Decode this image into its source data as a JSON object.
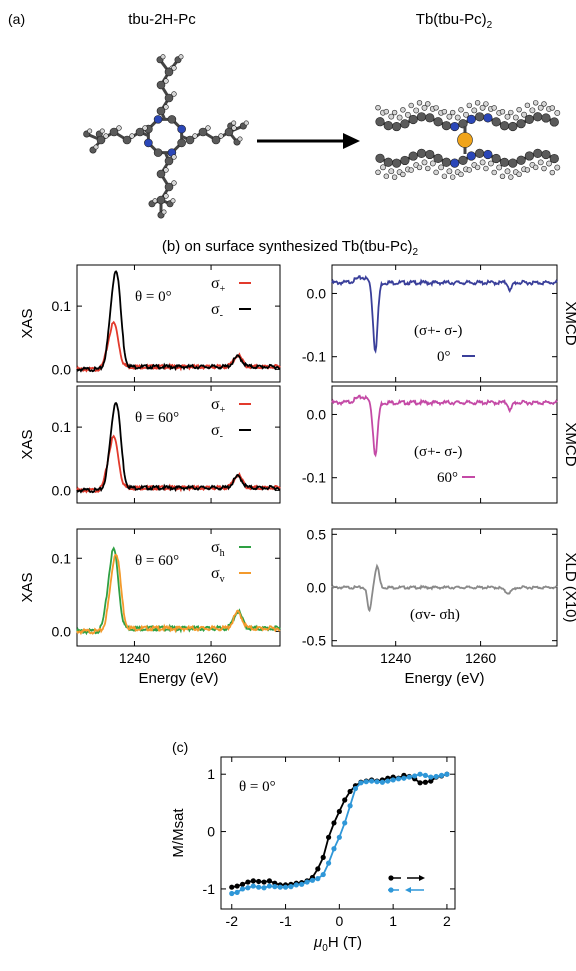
{
  "panel_a": {
    "label": "(a)",
    "left_title": "tbu-2H-Pc",
    "right_title_main": "Tb(tbu-Pc)",
    "right_title_sub": "2"
  },
  "panel_b": {
    "label_main": "(b) on surface synthesized Tb(tbu-Pc)",
    "label_sub": "2"
  },
  "panel_c": {
    "label": "(c)"
  },
  "colors": {
    "sigma_plus": "#e23a2c",
    "sigma_minus": "#000000",
    "xmcd0": "#3a3f9a",
    "xmcd60": "#c44aa6",
    "sigma_h": "#2ea043",
    "sigma_v": "#f39a2c",
    "xld": "#8a8a8a",
    "hyst_up": "#000000",
    "hyst_down": "#2f97d8",
    "atom_c": "#5a5a5a",
    "atom_h": "#d6d6d6",
    "atom_n": "#2b47b8",
    "atom_tb": "#f0a41a"
  },
  "chart_data": [
    {
      "id": "xas-0",
      "type": "line",
      "ylabel": "XAS",
      "xlabel": "",
      "xlim": [
        1225,
        1278
      ],
      "ylim": [
        -0.02,
        0.165
      ],
      "yticks": [
        0.0,
        0.1
      ],
      "ytick_labels": [
        "0.0",
        "0.1"
      ],
      "xticks": [
        1240,
        1260
      ],
      "xtick_labels": [
        "",
        ""
      ],
      "annotation": "θ = 0°",
      "legend_placement": "top-right",
      "series": [
        {
          "name": "σ+",
          "label_main": "σ",
          "label_sub": "+",
          "color": "#e23a2c",
          "peak1": 0.065,
          "peak2": 0.018
        },
        {
          "name": "σ-",
          "label_main": "σ",
          "label_sub": "-",
          "color": "#000000",
          "peak1": 0.14,
          "peak2": 0.016
        }
      ]
    },
    {
      "id": "xmcd-0",
      "type": "line",
      "ylabel": "XMCD",
      "xlabel": "",
      "xlim": [
        1225,
        1278
      ],
      "ylim": [
        -0.14,
        0.045
      ],
      "yticks": [
        0.0,
        -0.1
      ],
      "ytick_labels": [
        "0.0",
        "-0.1"
      ],
      "xticks": [
        1240,
        1260
      ],
      "xtick_labels": [
        "",
        ""
      ],
      "annotation": "(σ+- σ-)",
      "legend_placement": "center-right",
      "series": [
        {
          "name": "0°",
          "color": "#3a3f9a",
          "dip": -0.107,
          "pre": 0.02
        }
      ]
    },
    {
      "id": "xas-60",
      "type": "line",
      "ylabel": "XAS",
      "xlabel": "",
      "xlim": [
        1225,
        1278
      ],
      "ylim": [
        -0.02,
        0.165
      ],
      "yticks": [
        0.0,
        0.1
      ],
      "ytick_labels": [
        "0.0",
        "0.1"
      ],
      "xticks": [
        1240,
        1260
      ],
      "xtick_labels": [
        "",
        ""
      ],
      "annotation": "θ = 60°",
      "legend_placement": "top-right",
      "series": [
        {
          "name": "σ+",
          "label_main": "σ",
          "label_sub": "+",
          "color": "#e23a2c",
          "peak1": 0.075,
          "peak2": 0.02
        },
        {
          "name": "σ-",
          "label_main": "σ",
          "label_sub": "-",
          "color": "#000000",
          "peak1": 0.125,
          "peak2": 0.018
        }
      ]
    },
    {
      "id": "xmcd-60",
      "type": "line",
      "ylabel": "XMCD",
      "xlabel": "",
      "xlim": [
        1225,
        1278
      ],
      "ylim": [
        -0.14,
        0.045
      ],
      "yticks": [
        0.0,
        -0.1
      ],
      "ytick_labels": [
        "0.0",
        "-0.1"
      ],
      "xticks": [
        1240,
        1260
      ],
      "xtick_labels": [
        "",
        ""
      ],
      "annotation": "(σ+- σ-)",
      "legend_placement": "center-right",
      "series": [
        {
          "name": "60°",
          "color": "#c44aa6",
          "dip": -0.082,
          "pre": 0.022
        }
      ]
    },
    {
      "id": "xas-lin",
      "type": "line",
      "ylabel": "XAS",
      "xlabel": "Energy (eV)",
      "xlim": [
        1225,
        1278
      ],
      "ylim": [
        -0.02,
        0.14
      ],
      "yticks": [
        0.0,
        0.1
      ],
      "ytick_labels": [
        "0.0",
        "0.1"
      ],
      "xticks": [
        1240,
        1260
      ],
      "xtick_labels": [
        "1240",
        "1260"
      ],
      "annotation": "θ = 60°",
      "legend_placement": "top-right",
      "series": [
        {
          "name": "σh",
          "label_main": "σ",
          "label_sub": "h",
          "color": "#2ea043",
          "peak1": 0.1,
          "peak2": 0.023
        },
        {
          "name": "σv",
          "label_main": "σ",
          "label_sub": "v",
          "color": "#f39a2c",
          "peak1": 0.095,
          "peak2": 0.022
        }
      ]
    },
    {
      "id": "xld",
      "type": "line",
      "ylabel": "XLD (X10)",
      "xlabel": "Energy (eV)",
      "xlim": [
        1225,
        1278
      ],
      "ylim": [
        -0.55,
        0.55
      ],
      "yticks": [
        0.5,
        0.0,
        -0.5
      ],
      "ytick_labels": [
        "0.5",
        "0.0",
        "-0.5"
      ],
      "xticks": [
        1240,
        1260
      ],
      "xtick_labels": [
        "1240",
        "1260"
      ],
      "annotation": "(σv- σh)",
      "legend_placement": "none",
      "series": [
        {
          "name": "XLD",
          "color": "#8a8a8a",
          "dip": -0.22,
          "bump": 0.2
        }
      ]
    },
    {
      "id": "hysteresis",
      "type": "line",
      "ylabel": "M/Msat",
      "xlabel_main": "μ",
      "xlabel_sub": "0",
      "xlabel_tail": "H (T)",
      "xlim": [
        -2.2,
        2.15
      ],
      "ylim": [
        -1.35,
        1.3
      ],
      "yticks": [
        1,
        0,
        -1
      ],
      "ytick_labels": [
        "1",
        "0",
        "-1"
      ],
      "xticks": [
        -2,
        -1,
        0,
        1,
        2
      ],
      "xtick_labels": [
        "-2",
        "-1",
        "0",
        "1",
        "2"
      ],
      "annotation": "θ = 0°",
      "legend_placement": "bottom-right",
      "series": [
        {
          "name": "up sweep",
          "color": "#000000",
          "marker": "circle",
          "x": [
            -2.0,
            -1.9,
            -1.8,
            -1.7,
            -1.6,
            -1.5,
            -1.4,
            -1.3,
            -1.2,
            -1.1,
            -1.0,
            -0.9,
            -0.8,
            -0.7,
            -0.6,
            -0.5,
            -0.4,
            -0.3,
            -0.2,
            -0.1,
            0.0,
            0.1,
            0.2,
            0.3,
            0.4,
            0.5,
            0.6,
            0.7,
            0.8,
            0.9,
            1.0,
            1.1,
            1.2,
            1.3,
            1.4,
            1.5,
            1.6,
            1.7,
            1.8,
            1.9,
            2.0
          ],
          "y": [
            -0.97,
            -0.95,
            -0.92,
            -0.88,
            -0.86,
            -0.87,
            -0.88,
            -0.86,
            -0.9,
            -0.93,
            -0.93,
            -0.92,
            -0.9,
            -0.89,
            -0.86,
            -0.8,
            -0.65,
            -0.45,
            -0.1,
            0.15,
            0.35,
            0.55,
            0.7,
            0.8,
            0.86,
            0.88,
            0.9,
            0.88,
            0.9,
            0.93,
            0.95,
            0.93,
            0.98,
            0.96,
            0.92,
            0.85,
            0.86,
            0.88,
            0.95,
            0.97,
            1.0
          ]
        },
        {
          "name": "down sweep",
          "color": "#2f97d8",
          "marker": "circle",
          "x": [
            -2.0,
            -1.9,
            -1.8,
            -1.7,
            -1.6,
            -1.5,
            -1.4,
            -1.3,
            -1.2,
            -1.1,
            -1.0,
            -0.9,
            -0.8,
            -0.7,
            -0.6,
            -0.5,
            -0.4,
            -0.3,
            -0.2,
            -0.1,
            0.0,
            0.1,
            0.2,
            0.3,
            0.4,
            0.5,
            0.6,
            0.7,
            0.8,
            0.9,
            1.0,
            1.1,
            1.2,
            1.3,
            1.4,
            1.5,
            1.6,
            1.7,
            1.8,
            1.9,
            2.0
          ],
          "y": [
            -1.08,
            -1.06,
            -1.0,
            -0.98,
            -0.95,
            -0.97,
            -0.98,
            -0.95,
            -0.96,
            -0.97,
            -0.97,
            -0.96,
            -0.93,
            -0.92,
            -0.88,
            -0.85,
            -0.82,
            -0.75,
            -0.55,
            -0.3,
            -0.1,
            0.15,
            0.45,
            0.75,
            0.85,
            0.87,
            0.88,
            0.87,
            0.86,
            0.88,
            0.9,
            0.92,
            0.93,
            0.95,
            0.97,
            1.0,
            0.98,
            0.95,
            0.96,
            0.98,
            1.0
          ]
        }
      ]
    }
  ]
}
